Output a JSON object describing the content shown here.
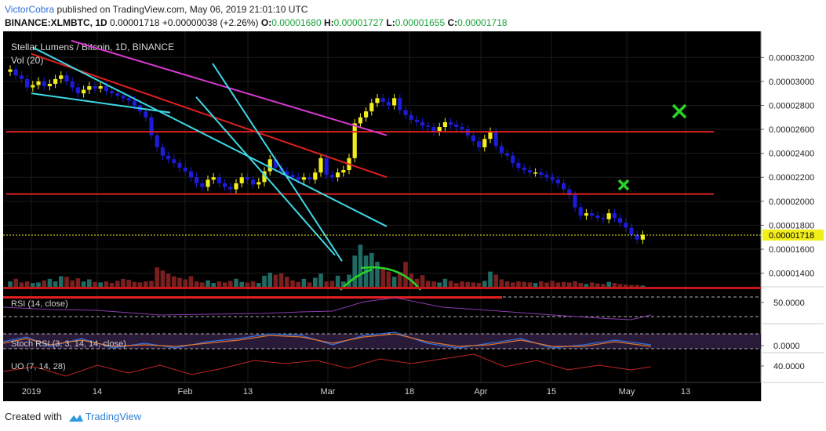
{
  "header": {
    "author": "VictorCobra",
    "published": "published on TradingView.com, May 06, 2019 21:01:10 UTC",
    "symbol_line": "BINANCE:XLMBTC, 1D",
    "last": "0.00001718",
    "change": "+0.00000038 (+2.26%)",
    "open_label": "O:",
    "open": "0.00001680",
    "high_label": "H:",
    "high": "0.00001727",
    "low_label": "L:",
    "low": "0.00001655",
    "close_label": "C:",
    "close": "0.00001718"
  },
  "footer": {
    "created_with": "Created with",
    "brand": "TradingView"
  },
  "colors": {
    "background": "#000000",
    "up": "#f2ee1a",
    "down": "#1c1cd6",
    "vol_up": "#1f6b63",
    "vol_down": "#7a1f1f",
    "red_line": "#e02020",
    "cyan_line": "#3fd7e6",
    "magenta_line": "#d838d0",
    "marker": "#27d427",
    "rsi": "#8c3ab0",
    "stoch_k": "#2e6fe0",
    "stoch_d": "#e0762e",
    "uo": "#c02424"
  },
  "chart_data": {
    "type": "candlestick",
    "title": "Stellar Lumens / Bitcoin, 1D, BINANCE",
    "legend": "Vol (20)",
    "x_labels": [
      "2019",
      "14",
      "Feb",
      "13",
      "Mar",
      "18",
      "Apr",
      "15",
      "May",
      "13"
    ],
    "y_ticks": [
      "0.00003200",
      "0.00003000",
      "0.00002800",
      "0.00002600",
      "0.00002400",
      "0.00002200",
      "0.00002000",
      "0.00001800",
      "0.00001600",
      "0.00001400"
    ],
    "ylim": [
      1.26e-05,
      3.3e-05
    ],
    "last_price_label": "0.00001718",
    "last_price": 1.718e-05,
    "closes": [
      3.1,
      3.05,
      3.02,
      2.95,
      2.97,
      3.0,
      2.96,
      2.98,
      3.02,
      3.05,
      3.0,
      2.95,
      2.9,
      2.93,
      2.96,
      2.94,
      2.96,
      2.92,
      2.9,
      2.88,
      2.86,
      2.84,
      2.8,
      2.75,
      2.7,
      2.55,
      2.45,
      2.38,
      2.35,
      2.32,
      2.28,
      2.25,
      2.2,
      2.15,
      2.12,
      2.18,
      2.2,
      2.15,
      2.12,
      2.1,
      2.15,
      2.2,
      2.18,
      2.14,
      2.16,
      2.25,
      2.35,
      2.28,
      2.25,
      2.22,
      2.2,
      2.18,
      2.2,
      2.18,
      2.24,
      2.36,
      2.22,
      2.2,
      2.24,
      2.26,
      2.36,
      2.65,
      2.7,
      2.75,
      2.82,
      2.86,
      2.83,
      2.8,
      2.86,
      2.76,
      2.72,
      2.68,
      2.66,
      2.63,
      2.62,
      2.58,
      2.62,
      2.66,
      2.64,
      2.62,
      2.6,
      2.55,
      2.5,
      2.45,
      2.52,
      2.58,
      2.46,
      2.4,
      2.38,
      2.32,
      2.28,
      2.26,
      2.24,
      2.24,
      2.22,
      2.2,
      2.18,
      2.15,
      2.1,
      2.05,
      1.95,
      1.88,
      1.9,
      1.88,
      1.86,
      1.85,
      1.9,
      1.86,
      1.82,
      1.78,
      1.72,
      1.68,
      1.72
    ],
    "volume": [
      1.5,
      2,
      1.3,
      1.5,
      1.2,
      1.3,
      1.7,
      2,
      1.5,
      2.5,
      2.4,
      1.7,
      2.1,
      1.5,
      1.9,
      1.4,
      1.3,
      1.5,
      1.2,
      1.6,
      2,
      1.8,
      1.4,
      1.3,
      1.5,
      1.6,
      4.2,
      3.6,
      3.0,
      2.5,
      2.2,
      1.9,
      2.5,
      1.5,
      1.3,
      1.7,
      1.2,
      1.5,
      1.3,
      1.6,
      2.0,
      1.4,
      1.3,
      1.5,
      1.2,
      2.6,
      3.2,
      2.8,
      3.1,
      2.4,
      1.7,
      1.4,
      2.0,
      1.3,
      2.2,
      3.0,
      1.5,
      1.6,
      2.6,
      1.5,
      2.8,
      6.5,
      8.6,
      6.5,
      7.0,
      5.3,
      4.2,
      3.4,
      2.4,
      3.3,
      5.3,
      3.0,
      2.0,
      2.7,
      1.6,
      1.5,
      1.3,
      2.0,
      1.6,
      1.2,
      1.5,
      1.4,
      1.3,
      1.2,
      1.6,
      3.4,
      2.8,
      1.9,
      1.5,
      1.3,
      1.5,
      1.4,
      1.3,
      1.2,
      1.5,
      1.3,
      1.6,
      1.3,
      1.4,
      1.3,
      1.5,
      1.2,
      1.0,
      1.3,
      1.1,
      1.0,
      1.4,
      1.2,
      1.0,
      0.9,
      0.8,
      0.8,
      0.7
    ],
    "trendlines": [
      {
        "color": "red",
        "from": [
          "2019-01-01",
          3.23e-05
        ],
        "to": [
          "2019-06-01",
          2.2e-05
        ]
      },
      {
        "color": "red",
        "value": 2.58e-05
      },
      {
        "color": "red",
        "value": 2.06e-05
      },
      {
        "color": "magenta",
        "from": [
          "2019-01-18",
          3.34e-05
        ],
        "to": [
          "2019-06-01",
          2.55e-05
        ]
      },
      {
        "color": "cyan",
        "from": [
          "2019-01-01",
          2.9e-05
        ],
        "to": [
          "2019-03-01",
          2.74e-05
        ]
      },
      {
        "color": "cyan",
        "from": [
          "2019-01-02",
          3.28e-05
        ],
        "to": [
          "2019-06-01",
          1.79e-05
        ]
      },
      {
        "color": "cyan",
        "from": [
          "2019-03-12",
          2.87e-05
        ],
        "to": [
          "2019-05-10",
          1.55e-05
        ]
      },
      {
        "color": "cyan",
        "from": [
          "2019-03-19",
          3.15e-05
        ],
        "to": [
          "2019-05-13",
          1.5e-05
        ]
      }
    ],
    "indicators": [
      {
        "name": "RSI (14, close)",
        "tick": "50.0000"
      },
      {
        "name": "Stoch RSI (3, 3, 14, 14, close)",
        "tick": "0.0000"
      },
      {
        "name": "UO (7, 14, 28)",
        "tick": "40.0000"
      }
    ]
  }
}
